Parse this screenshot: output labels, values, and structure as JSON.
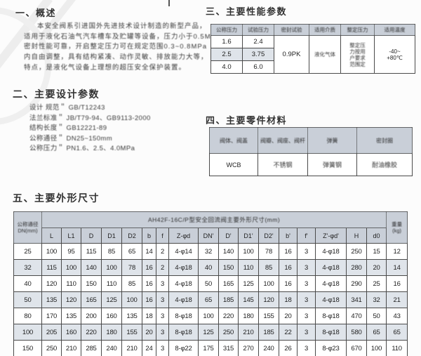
{
  "page": {
    "header_fill": "#c9cfd8",
    "row_shade": "#dfe4ea",
    "border": "#4a4a4a"
  },
  "section1": {
    "title": "一、概述",
    "lines": [
      "本安全阀系引进国外先进技术设计制造的新型产品，",
      "适用于液化石油气汽车槽车及贮罐等设备，压力小于0.5MPa，",
      "密封性能可靠，开启整定压力可在规定范围0.3~0.8MPa",
      "内自由调整，具有结构紧凑、动作灵敏、排放能力大等，",
      "特点，是液化气设备上理想的超压安全保护装置。"
    ]
  },
  "section2": {
    "title": "二、主要设计参数",
    "items": [
      "设计  规范＂ GB/T12243",
      "法兰标准＂ JB/T79-94、GB9113-2000",
      "结构长度＂ GB12221-89",
      "公称通径＂ DN25~150mm",
      "公称压力＂ PN1.6、2.5、4.0MPa"
    ]
  },
  "section3": {
    "title": "三、主要性能参数",
    "headers": [
      "公称压力",
      "试验压力",
      "密封试验",
      "适用介质",
      "整定压力",
      "适用温度"
    ],
    "rows": [
      [
        "1.6",
        "2.4"
      ],
      [
        "2.5",
        "3.75"
      ],
      [
        "4.0",
        "6.0"
      ]
    ],
    "seal_test": "0.9PK",
    "medium": "液化气体",
    "setting": "整定压\n力按用\n户要求\n范围定",
    "temp": "-40~\n+80℃"
  },
  "section4": {
    "title": "四、主要零件材料",
    "headers": [
      "阀体、阀盖",
      "阀瓣、阀座、阀杆",
      "弹簧",
      "密封圈"
    ],
    "values": [
      "WCB",
      "不锈钢",
      "弹簧钢",
      "耐油橡胶"
    ]
  },
  "section5": {
    "title": "五、主要外形尺寸",
    "table": {
      "dn_header": "公称通径\nDN(mm)",
      "group_header": "AH42F-16C/P型安全回流阀主要外形尺寸(mm)",
      "weight_header": "重量\n(kg)",
      "sub_headers": [
        "L",
        "L1",
        "D",
        "D1",
        "D2",
        "b",
        "f",
        "Z-φd",
        "DN'",
        "D'",
        "D1'",
        "D2'",
        "b'",
        "f'",
        "Z'-φd'",
        "H",
        "d0"
      ],
      "rows": [
        [
          "25",
          "100",
          "95",
          "115",
          "85",
          "65",
          "14",
          "2",
          "4-φ14",
          "32",
          "140",
          "100",
          "78",
          "16",
          "3",
          "4-φ18",
          "250",
          "15",
          "12"
        ],
        [
          "32",
          "115",
          "100",
          "140",
          "100",
          "78",
          "16",
          "2",
          "4-φ18",
          "40",
          "150",
          "110",
          "85",
          "16",
          "3",
          "4-φ18",
          "280",
          "20",
          "14"
        ],
        [
          "40",
          "120",
          "110",
          "150",
          "110",
          "85",
          "16",
          "3",
          "4-φ18",
          "50",
          "165",
          "125",
          "100",
          "16",
          "3",
          "4-φ18",
          "290",
          "25",
          "16"
        ],
        [
          "50",
          "135",
          "120",
          "165",
          "125",
          "100",
          "16",
          "3",
          "4-φ18",
          "65",
          "185",
          "145",
          "120",
          "18",
          "3",
          "4-φ18",
          "341",
          "32",
          "21"
        ],
        [
          "80",
          "170",
          "135",
          "200",
          "160",
          "135",
          "18",
          "3",
          "8-φ18",
          "100",
          "220",
          "180",
          "155",
          "20",
          "3",
          "8-φ18",
          "470",
          "50",
          "43"
        ],
        [
          "100",
          "205",
          "160",
          "220",
          "180",
          "155",
          "20",
          "3",
          "8-φ18",
          "125",
          "250",
          "210",
          "185",
          "22",
          "3",
          "8-φ18",
          "580",
          "65",
          "65"
        ],
        [
          "150",
          "250",
          "210",
          "285",
          "240",
          "210",
          "24",
          "3",
          "8-φ22",
          "175",
          "315",
          "270",
          "240",
          "26",
          "3",
          "8-φ23",
          "670",
          "100",
          "110"
        ]
      ]
    }
  }
}
